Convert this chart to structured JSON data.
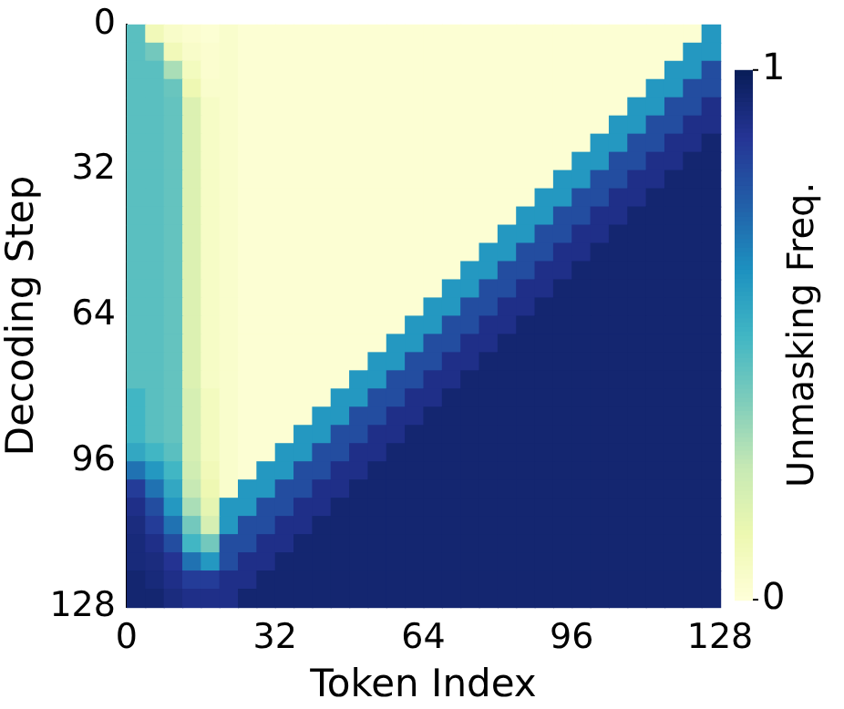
{
  "chart_data": {
    "type": "heatmap",
    "xlabel": "Token Index",
    "ylabel": "Decoding Step",
    "clabel": "Unmasking Freq.",
    "xlim": [
      0,
      128
    ],
    "xticks": [
      0,
      32,
      64,
      96,
      128
    ],
    "ylim": [
      128,
      0
    ],
    "yticks": [
      0,
      32,
      64,
      96,
      128
    ],
    "clim": [
      0,
      1
    ],
    "cticks": [
      0,
      1
    ],
    "cells": [
      [
        0.45,
        0.1,
        0.05,
        0.03,
        0.02,
        0.04,
        0.02,
        0.02,
        0.02,
        0.02,
        0.02,
        0.02,
        0.02,
        0.02,
        0.02,
        0.02,
        0.02,
        0.02,
        0.02,
        0.02,
        0.02,
        0.02,
        0.02,
        0.02,
        0.02,
        0.02,
        0.02,
        0.02,
        0.02,
        0.02,
        0.02,
        0.6
      ],
      [
        0.45,
        0.4,
        0.1,
        0.05,
        0.03,
        0.04,
        0.02,
        0.02,
        0.02,
        0.02,
        0.02,
        0.02,
        0.02,
        0.02,
        0.02,
        0.02,
        0.02,
        0.02,
        0.02,
        0.02,
        0.02,
        0.02,
        0.02,
        0.02,
        0.02,
        0.02,
        0.02,
        0.02,
        0.02,
        0.02,
        0.6,
        0.6
      ],
      [
        0.45,
        0.45,
        0.3,
        0.08,
        0.03,
        0.04,
        0.02,
        0.02,
        0.02,
        0.02,
        0.02,
        0.02,
        0.02,
        0.02,
        0.02,
        0.02,
        0.02,
        0.02,
        0.02,
        0.02,
        0.02,
        0.02,
        0.02,
        0.02,
        0.02,
        0.02,
        0.02,
        0.02,
        0.02,
        0.6,
        0.6,
        0.8
      ],
      [
        0.45,
        0.45,
        0.42,
        0.12,
        0.04,
        0.04,
        0.02,
        0.02,
        0.02,
        0.02,
        0.02,
        0.02,
        0.02,
        0.02,
        0.02,
        0.02,
        0.02,
        0.02,
        0.02,
        0.02,
        0.02,
        0.02,
        0.02,
        0.02,
        0.02,
        0.02,
        0.02,
        0.02,
        0.6,
        0.6,
        0.8,
        0.8
      ],
      [
        0.45,
        0.45,
        0.43,
        0.18,
        0.06,
        0.04,
        0.02,
        0.02,
        0.02,
        0.02,
        0.02,
        0.02,
        0.02,
        0.02,
        0.02,
        0.02,
        0.02,
        0.02,
        0.02,
        0.02,
        0.02,
        0.02,
        0.02,
        0.02,
        0.02,
        0.02,
        0.02,
        0.6,
        0.6,
        0.8,
        0.8,
        0.9
      ],
      [
        0.45,
        0.45,
        0.43,
        0.18,
        0.06,
        0.04,
        0.02,
        0.02,
        0.02,
        0.02,
        0.02,
        0.02,
        0.02,
        0.02,
        0.02,
        0.02,
        0.02,
        0.02,
        0.02,
        0.02,
        0.02,
        0.02,
        0.02,
        0.02,
        0.02,
        0.02,
        0.6,
        0.6,
        0.8,
        0.8,
        0.9,
        0.9
      ],
      [
        0.45,
        0.45,
        0.43,
        0.18,
        0.06,
        0.04,
        0.02,
        0.02,
        0.02,
        0.02,
        0.02,
        0.02,
        0.02,
        0.02,
        0.02,
        0.02,
        0.02,
        0.02,
        0.02,
        0.02,
        0.02,
        0.02,
        0.02,
        0.02,
        0.02,
        0.6,
        0.6,
        0.8,
        0.8,
        0.9,
        0.9,
        0.95
      ],
      [
        0.45,
        0.45,
        0.43,
        0.18,
        0.06,
        0.04,
        0.02,
        0.02,
        0.02,
        0.02,
        0.02,
        0.02,
        0.02,
        0.02,
        0.02,
        0.02,
        0.02,
        0.02,
        0.02,
        0.02,
        0.02,
        0.02,
        0.02,
        0.02,
        0.6,
        0.6,
        0.8,
        0.8,
        0.9,
        0.9,
        0.95,
        0.95
      ],
      [
        0.45,
        0.45,
        0.43,
        0.18,
        0.06,
        0.04,
        0.02,
        0.02,
        0.02,
        0.02,
        0.02,
        0.02,
        0.02,
        0.02,
        0.02,
        0.02,
        0.02,
        0.02,
        0.02,
        0.02,
        0.02,
        0.02,
        0.02,
        0.6,
        0.6,
        0.8,
        0.8,
        0.9,
        0.9,
        0.95,
        0.95,
        0.95
      ],
      [
        0.45,
        0.45,
        0.43,
        0.18,
        0.06,
        0.04,
        0.02,
        0.02,
        0.02,
        0.02,
        0.02,
        0.02,
        0.02,
        0.02,
        0.02,
        0.02,
        0.02,
        0.02,
        0.02,
        0.02,
        0.02,
        0.02,
        0.6,
        0.6,
        0.8,
        0.8,
        0.9,
        0.9,
        0.95,
        0.95,
        0.95,
        0.95
      ],
      [
        0.45,
        0.45,
        0.43,
        0.18,
        0.06,
        0.04,
        0.02,
        0.02,
        0.02,
        0.02,
        0.02,
        0.02,
        0.02,
        0.02,
        0.02,
        0.02,
        0.02,
        0.02,
        0.02,
        0.02,
        0.02,
        0.6,
        0.6,
        0.8,
        0.8,
        0.9,
        0.9,
        0.95,
        0.95,
        0.95,
        0.95,
        0.95
      ],
      [
        0.45,
        0.45,
        0.43,
        0.18,
        0.06,
        0.04,
        0.02,
        0.02,
        0.02,
        0.02,
        0.02,
        0.02,
        0.02,
        0.02,
        0.02,
        0.02,
        0.02,
        0.02,
        0.02,
        0.02,
        0.6,
        0.6,
        0.8,
        0.8,
        0.9,
        0.9,
        0.95,
        0.95,
        0.95,
        0.95,
        0.95,
        0.95
      ],
      [
        0.45,
        0.45,
        0.43,
        0.18,
        0.06,
        0.04,
        0.02,
        0.02,
        0.02,
        0.02,
        0.02,
        0.02,
        0.02,
        0.02,
        0.02,
        0.02,
        0.02,
        0.02,
        0.02,
        0.6,
        0.6,
        0.8,
        0.8,
        0.9,
        0.9,
        0.95,
        0.95,
        0.95,
        0.95,
        0.95,
        0.95,
        0.95
      ],
      [
        0.45,
        0.45,
        0.43,
        0.18,
        0.06,
        0.04,
        0.02,
        0.02,
        0.02,
        0.02,
        0.02,
        0.02,
        0.02,
        0.02,
        0.02,
        0.02,
        0.02,
        0.02,
        0.6,
        0.6,
        0.8,
        0.8,
        0.9,
        0.9,
        0.95,
        0.95,
        0.95,
        0.95,
        0.95,
        0.95,
        0.95,
        0.95
      ],
      [
        0.45,
        0.45,
        0.43,
        0.18,
        0.06,
        0.04,
        0.02,
        0.02,
        0.02,
        0.02,
        0.02,
        0.02,
        0.02,
        0.02,
        0.02,
        0.02,
        0.02,
        0.6,
        0.6,
        0.8,
        0.8,
        0.9,
        0.9,
        0.95,
        0.95,
        0.95,
        0.95,
        0.95,
        0.95,
        0.95,
        0.95,
        0.95
      ],
      [
        0.45,
        0.45,
        0.43,
        0.18,
        0.06,
        0.04,
        0.02,
        0.02,
        0.02,
        0.02,
        0.02,
        0.02,
        0.02,
        0.02,
        0.02,
        0.02,
        0.6,
        0.6,
        0.8,
        0.8,
        0.9,
        0.9,
        0.95,
        0.95,
        0.95,
        0.95,
        0.95,
        0.95,
        0.95,
        0.95,
        0.95,
        0.95
      ],
      [
        0.45,
        0.45,
        0.43,
        0.18,
        0.06,
        0.04,
        0.02,
        0.02,
        0.02,
        0.02,
        0.02,
        0.02,
        0.02,
        0.02,
        0.02,
        0.6,
        0.6,
        0.8,
        0.8,
        0.9,
        0.9,
        0.95,
        0.95,
        0.95,
        0.95,
        0.95,
        0.95,
        0.95,
        0.95,
        0.95,
        0.95,
        0.95
      ],
      [
        0.45,
        0.45,
        0.43,
        0.18,
        0.06,
        0.04,
        0.02,
        0.02,
        0.02,
        0.02,
        0.02,
        0.02,
        0.02,
        0.02,
        0.6,
        0.6,
        0.8,
        0.8,
        0.9,
        0.9,
        0.95,
        0.95,
        0.95,
        0.95,
        0.95,
        0.95,
        0.95,
        0.95,
        0.95,
        0.95,
        0.95,
        0.95
      ],
      [
        0.45,
        0.45,
        0.43,
        0.18,
        0.06,
        0.04,
        0.02,
        0.02,
        0.02,
        0.02,
        0.02,
        0.02,
        0.02,
        0.6,
        0.6,
        0.8,
        0.8,
        0.9,
        0.9,
        0.95,
        0.95,
        0.95,
        0.95,
        0.95,
        0.95,
        0.95,
        0.95,
        0.95,
        0.95,
        0.95,
        0.95,
        0.95
      ],
      [
        0.45,
        0.45,
        0.43,
        0.18,
        0.06,
        0.04,
        0.02,
        0.02,
        0.02,
        0.02,
        0.02,
        0.02,
        0.6,
        0.6,
        0.8,
        0.8,
        0.9,
        0.9,
        0.95,
        0.95,
        0.95,
        0.95,
        0.95,
        0.95,
        0.95,
        0.95,
        0.95,
        0.95,
        0.95,
        0.95,
        0.95,
        0.95
      ],
      [
        0.5,
        0.45,
        0.43,
        0.2,
        0.08,
        0.04,
        0.02,
        0.02,
        0.02,
        0.02,
        0.02,
        0.6,
        0.6,
        0.8,
        0.8,
        0.9,
        0.9,
        0.95,
        0.95,
        0.95,
        0.95,
        0.95,
        0.95,
        0.95,
        0.95,
        0.95,
        0.95,
        0.95,
        0.95,
        0.95,
        0.95,
        0.95
      ],
      [
        0.5,
        0.45,
        0.43,
        0.2,
        0.08,
        0.04,
        0.02,
        0.02,
        0.02,
        0.02,
        0.6,
        0.6,
        0.8,
        0.8,
        0.9,
        0.9,
        0.95,
        0.95,
        0.95,
        0.95,
        0.95,
        0.95,
        0.95,
        0.95,
        0.95,
        0.95,
        0.95,
        0.95,
        0.95,
        0.95,
        0.95,
        0.95
      ],
      [
        0.5,
        0.45,
        0.43,
        0.2,
        0.08,
        0.04,
        0.02,
        0.02,
        0.02,
        0.6,
        0.6,
        0.8,
        0.8,
        0.9,
        0.9,
        0.95,
        0.95,
        0.95,
        0.95,
        0.95,
        0.95,
        0.95,
        0.95,
        0.95,
        0.95,
        0.95,
        0.95,
        0.95,
        0.95,
        0.95,
        0.95,
        0.95
      ],
      [
        0.55,
        0.5,
        0.45,
        0.2,
        0.08,
        0.04,
        0.02,
        0.02,
        0.6,
        0.6,
        0.8,
        0.8,
        0.9,
        0.9,
        0.95,
        0.95,
        0.95,
        0.95,
        0.95,
        0.95,
        0.95,
        0.95,
        0.95,
        0.95,
        0.95,
        0.95,
        0.95,
        0.95,
        0.95,
        0.95,
        0.95,
        0.95
      ],
      [
        0.7,
        0.6,
        0.5,
        0.22,
        0.1,
        0.04,
        0.02,
        0.6,
        0.6,
        0.8,
        0.8,
        0.9,
        0.9,
        0.95,
        0.95,
        0.95,
        0.95,
        0.95,
        0.95,
        0.95,
        0.95,
        0.95,
        0.95,
        0.95,
        0.95,
        0.95,
        0.95,
        0.95,
        0.95,
        0.95,
        0.95,
        0.95
      ],
      [
        0.85,
        0.7,
        0.55,
        0.25,
        0.12,
        0.04,
        0.6,
        0.6,
        0.8,
        0.8,
        0.9,
        0.9,
        0.95,
        0.95,
        0.95,
        0.95,
        0.95,
        0.95,
        0.95,
        0.95,
        0.95,
        0.95,
        0.95,
        0.95,
        0.95,
        0.95,
        0.95,
        0.95,
        0.95,
        0.95,
        0.95,
        0.95
      ],
      [
        0.9,
        0.8,
        0.6,
        0.3,
        0.15,
        0.6,
        0.6,
        0.8,
        0.8,
        0.9,
        0.9,
        0.95,
        0.95,
        0.95,
        0.95,
        0.95,
        0.95,
        0.95,
        0.95,
        0.95,
        0.95,
        0.95,
        0.95,
        0.95,
        0.95,
        0.95,
        0.95,
        0.95,
        0.95,
        0.95,
        0.95,
        0.95
      ],
      [
        0.92,
        0.85,
        0.7,
        0.4,
        0.2,
        0.6,
        0.8,
        0.8,
        0.9,
        0.9,
        0.95,
        0.95,
        0.95,
        0.95,
        0.95,
        0.95,
        0.95,
        0.95,
        0.95,
        0.95,
        0.95,
        0.95,
        0.95,
        0.95,
        0.95,
        0.95,
        0.95,
        0.95,
        0.95,
        0.95,
        0.95,
        0.95
      ],
      [
        0.93,
        0.9,
        0.8,
        0.5,
        0.4,
        0.8,
        0.8,
        0.9,
        0.9,
        0.95,
        0.95,
        0.95,
        0.95,
        0.95,
        0.95,
        0.95,
        0.95,
        0.95,
        0.95,
        0.95,
        0.95,
        0.95,
        0.95,
        0.95,
        0.95,
        0.95,
        0.95,
        0.95,
        0.95,
        0.95,
        0.95,
        0.95
      ],
      [
        0.93,
        0.92,
        0.88,
        0.7,
        0.6,
        0.8,
        0.9,
        0.9,
        0.95,
        0.95,
        0.95,
        0.95,
        0.95,
        0.95,
        0.95,
        0.95,
        0.95,
        0.95,
        0.95,
        0.95,
        0.95,
        0.95,
        0.95,
        0.95,
        0.95,
        0.95,
        0.95,
        0.95,
        0.95,
        0.95,
        0.95,
        0.95
      ],
      [
        0.95,
        0.93,
        0.9,
        0.85,
        0.85,
        0.9,
        0.9,
        0.95,
        0.95,
        0.95,
        0.95,
        0.95,
        0.95,
        0.95,
        0.95,
        0.95,
        0.95,
        0.95,
        0.95,
        0.95,
        0.95,
        0.95,
        0.95,
        0.95,
        0.95,
        0.95,
        0.95,
        0.95,
        0.95,
        0.95,
        0.95,
        0.95
      ],
      [
        0.95,
        0.95,
        0.92,
        0.9,
        0.9,
        0.9,
        0.95,
        0.95,
        0.95,
        0.95,
        0.95,
        0.95,
        0.95,
        0.95,
        0.95,
        0.95,
        0.95,
        0.95,
        0.95,
        0.95,
        0.95,
        0.95,
        0.95,
        0.95,
        0.95,
        0.95,
        0.95,
        0.95,
        0.95,
        0.95,
        0.95,
        0.95
      ]
    ]
  }
}
